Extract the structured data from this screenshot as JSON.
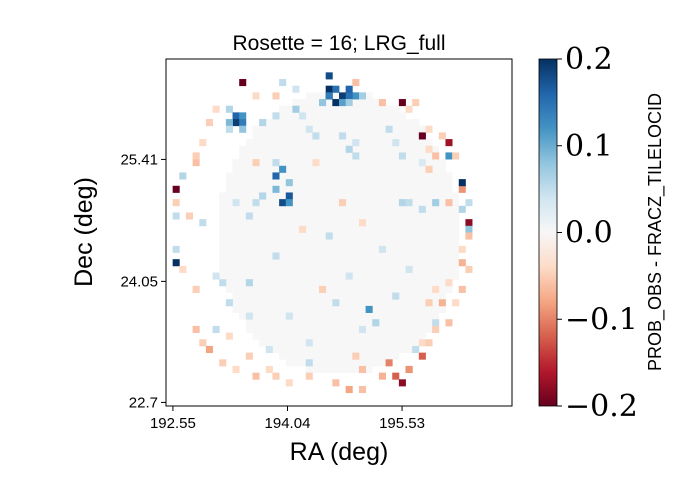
{
  "chart_data": {
    "type": "heatmap",
    "title": "Rosette = 16; LRG_full",
    "xlabel": "RA (deg)",
    "ylabel": "Dec (deg)",
    "xlim": [
      192.46,
      196.96
    ],
    "ylim": [
      22.66,
      26.53
    ],
    "x_ticks": [
      {
        "value": 192.55,
        "label": "192.55"
      },
      {
        "value": 194.04,
        "label": "194.04"
      },
      {
        "value": 195.53,
        "label": "195.53"
      }
    ],
    "y_ticks": [
      {
        "value": 25.41,
        "label": "25.41"
      },
      {
        "value": 24.05,
        "label": "24.05"
      },
      {
        "value": 22.7,
        "label": "22.7"
      }
    ],
    "colorbar": {
      "label": "PROB_OBS - FRACZ_TILELOCID",
      "colormap": "RdBu",
      "vmin": -0.2,
      "vmax": 0.2,
      "ticks": [
        {
          "value": 0.2,
          "label": "0.2"
        },
        {
          "value": 0.1,
          "label": "0.1"
        },
        {
          "value": 0.0,
          "label": "0.0"
        },
        {
          "value": -0.1,
          "label": "−0.1"
        },
        {
          "value": -0.2,
          "label": "−0.2"
        }
      ]
    },
    "grid": {
      "nx": 52,
      "ny": 52,
      "center_ra": 194.71,
      "center_dec": 24.59,
      "radius_deg": 1.59,
      "background_value": 0.0
    },
    "annotations": "values mostly near 0; positive clusters near top center and upper-left, negative values along the rim",
    "cells": [
      [
        194.56,
        26.21,
        0.2
      ],
      [
        194.62,
        26.15,
        0.18
      ],
      [
        194.69,
        26.18,
        0.15
      ],
      [
        194.75,
        26.12,
        0.19
      ],
      [
        194.81,
        26.18,
        0.16
      ],
      [
        194.88,
        26.15,
        0.2
      ],
      [
        194.94,
        26.12,
        0.12
      ],
      [
        194.62,
        26.09,
        0.14
      ],
      [
        194.69,
        26.06,
        0.2
      ],
      [
        194.75,
        26.06,
        0.11
      ],
      [
        194.81,
        26.09,
        0.15
      ],
      [
        194.5,
        26.06,
        0.08
      ],
      [
        194.88,
        26.06,
        0.07
      ],
      [
        194.56,
        26.31,
        0.18
      ],
      [
        194.95,
        26.24,
        -0.06
      ],
      [
        195.0,
        26.09,
        0.07
      ],
      [
        194.0,
        26.24,
        0.05
      ],
      [
        194.13,
        26.18,
        0.04
      ],
      [
        193.48,
        26.24,
        -0.2
      ],
      [
        193.62,
        26.15,
        -0.04
      ],
      [
        193.85,
        26.09,
        -0.05
      ],
      [
        195.25,
        26.02,
        -0.06
      ],
      [
        195.49,
        26.02,
        -0.2
      ],
      [
        195.62,
        25.96,
        -0.04
      ],
      [
        193.3,
        25.96,
        0.06
      ],
      [
        193.37,
        25.9,
        0.16
      ],
      [
        193.37,
        25.84,
        0.19
      ],
      [
        193.43,
        25.87,
        0.12
      ],
      [
        193.3,
        25.84,
        0.09
      ],
      [
        193.49,
        25.8,
        0.14
      ],
      [
        193.43,
        25.77,
        0.08
      ],
      [
        193.24,
        25.77,
        0.05
      ],
      [
        193.74,
        25.84,
        0.06
      ],
      [
        193.92,
        25.9,
        0.05
      ],
      [
        194.13,
        25.96,
        0.07
      ],
      [
        194.25,
        25.93,
        0.04
      ],
      [
        194.76,
        25.66,
        0.05
      ],
      [
        194.82,
        25.55,
        0.06
      ],
      [
        194.9,
        25.48,
        0.05
      ],
      [
        194.95,
        25.62,
        0.04
      ],
      [
        194.32,
        25.75,
        0.04
      ],
      [
        194.45,
        25.66,
        0.05
      ],
      [
        195.37,
        25.72,
        0.05
      ],
      [
        195.43,
        25.57,
        0.04
      ],
      [
        195.56,
        25.48,
        0.05
      ],
      [
        195.8,
        25.66,
        -0.2
      ],
      [
        195.85,
        25.5,
        -0.04
      ],
      [
        195.8,
        25.41,
        0.03
      ],
      [
        195.87,
        25.3,
        -0.05
      ],
      [
        196.17,
        25.58,
        -0.17
      ],
      [
        196.17,
        25.48,
        0.12
      ],
      [
        196.24,
        25.42,
        -0.05
      ],
      [
        195.99,
        25.45,
        -0.06
      ],
      [
        193.9,
        25.37,
        0.05
      ],
      [
        193.96,
        25.3,
        0.12
      ],
      [
        193.9,
        25.2,
        0.16
      ],
      [
        194.04,
        25.12,
        0.08
      ],
      [
        193.85,
        25.06,
        0.09
      ],
      [
        193.96,
        24.96,
        0.18
      ],
      [
        194.02,
        24.99,
        0.17
      ],
      [
        194.08,
        24.93,
        0.12
      ],
      [
        193.73,
        25.0,
        0.06
      ],
      [
        193.66,
        24.9,
        0.05
      ],
      [
        193.36,
        24.93,
        0.04
      ],
      [
        193.55,
        24.75,
        0.05
      ],
      [
        195.55,
        24.94,
        0.06
      ],
      [
        195.62,
        24.9,
        0.05
      ],
      [
        195.8,
        24.85,
        0.05
      ],
      [
        195.99,
        24.96,
        0.07
      ],
      [
        196.18,
        24.94,
        -0.06
      ],
      [
        196.27,
        24.84,
        0.06
      ],
      [
        196.3,
        25.06,
        -0.09
      ],
      [
        196.33,
        25.18,
        0.2
      ],
      [
        196.36,
        24.93,
        0.05
      ],
      [
        196.36,
        24.74,
        -0.18
      ],
      [
        196.4,
        24.62,
        0.08
      ],
      [
        196.36,
        24.53,
        -0.06
      ],
      [
        196.34,
        24.4,
        -0.04
      ],
      [
        196.28,
        24.28,
        -0.07
      ],
      [
        196.18,
        24.02,
        -0.04
      ],
      [
        192.62,
        25.06,
        -0.2
      ],
      [
        192.58,
        24.92,
        -0.05
      ],
      [
        192.59,
        24.78,
        0.05
      ],
      [
        192.55,
        24.42,
        0.05
      ],
      [
        192.58,
        24.28,
        0.2
      ],
      [
        192.68,
        24.15,
        -0.04
      ],
      [
        192.69,
        25.22,
        0.06
      ],
      [
        192.82,
        25.35,
        -0.06
      ],
      [
        192.88,
        25.48,
        -0.05
      ],
      [
        192.95,
        25.62,
        -0.04
      ],
      [
        192.8,
        24.8,
        -0.05
      ],
      [
        192.95,
        24.7,
        0.05
      ],
      [
        193.5,
        24.05,
        0.06
      ],
      [
        193.18,
        24.0,
        0.05
      ],
      [
        193.1,
        24.1,
        0.04
      ],
      [
        192.84,
        23.94,
        -0.05
      ],
      [
        193.3,
        23.78,
        0.05
      ],
      [
        193.56,
        23.66,
        0.04
      ],
      [
        194.04,
        23.7,
        0.04
      ],
      [
        194.48,
        23.95,
        -0.05
      ],
      [
        194.65,
        23.85,
        0.05
      ],
      [
        195.13,
        23.72,
        0.12
      ],
      [
        195.18,
        23.6,
        0.06
      ],
      [
        195.02,
        23.55,
        0.04
      ],
      [
        195.87,
        23.8,
        -0.05
      ],
      [
        195.93,
        23.94,
        -0.04
      ],
      [
        195.97,
        23.62,
        0.05
      ],
      [
        196.05,
        23.78,
        -0.07
      ],
      [
        196.12,
        23.62,
        -0.06
      ],
      [
        196.0,
        23.48,
        -0.05
      ],
      [
        195.8,
        23.4,
        -0.04
      ],
      [
        192.87,
        23.5,
        -0.06
      ],
      [
        192.95,
        23.35,
        -0.05
      ],
      [
        193.03,
        23.27,
        -0.08
      ],
      [
        193.2,
        23.14,
        -0.05
      ],
      [
        193.37,
        23.05,
        -0.04
      ],
      [
        193.6,
        22.97,
        -0.06
      ],
      [
        193.87,
        22.97,
        -0.05
      ],
      [
        194.07,
        22.9,
        -0.04
      ],
      [
        194.35,
        22.97,
        -0.05
      ],
      [
        194.7,
        22.92,
        -0.06
      ],
      [
        194.85,
        22.86,
        -0.08
      ],
      [
        195.05,
        22.86,
        -0.06
      ],
      [
        195.43,
        22.97,
        -0.12
      ],
      [
        195.62,
        23.06,
        -0.14
      ],
      [
        195.78,
        23.2,
        -0.12
      ],
      [
        195.88,
        23.36,
        -0.05
      ],
      [
        195.38,
        23.14,
        -0.1
      ],
      [
        195.25,
        23.02,
        -0.07
      ],
      [
        193.5,
        23.2,
        -0.05
      ],
      [
        193.8,
        23.1,
        -0.04
      ],
      [
        194.3,
        23.14,
        0.05
      ],
      [
        194.92,
        23.2,
        -0.05
      ],
      [
        195.05,
        23.05,
        -0.06
      ],
      [
        195.7,
        23.28,
        0.05
      ],
      [
        194.34,
        23.33,
        0.04
      ],
      [
        193.76,
        23.3,
        0.04
      ],
      [
        193.25,
        23.42,
        -0.04
      ],
      [
        193.1,
        23.55,
        0.05
      ],
      [
        195.5,
        22.95,
        -0.18
      ],
      [
        195.58,
        23.1,
        -0.09
      ],
      [
        193.66,
        25.4,
        -0.05
      ],
      [
        194.41,
        25.38,
        -0.04
      ],
      [
        194.74,
        24.9,
        -0.05
      ],
      [
        195.0,
        24.7,
        -0.04
      ],
      [
        194.62,
        24.55,
        0.05
      ],
      [
        195.24,
        24.4,
        0.04
      ],
      [
        193.92,
        24.35,
        0.05
      ],
      [
        195.62,
        24.2,
        0.04
      ],
      [
        195.45,
        23.88,
        0.05
      ],
      [
        194.85,
        24.1,
        0.04
      ],
      [
        194.22,
        24.62,
        -0.04
      ],
      [
        193.0,
        25.8,
        -0.05
      ],
      [
        193.12,
        25.96,
        -0.04
      ],
      [
        195.9,
        25.78,
        -0.04
      ],
      [
        196.05,
        25.66,
        -0.05
      ],
      [
        195.7,
        26.05,
        -0.05
      ],
      [
        196.4,
        24.2,
        -0.05
      ],
      [
        196.3,
        23.95,
        -0.06
      ],
      [
        196.2,
        23.82,
        -0.04
      ]
    ]
  }
}
